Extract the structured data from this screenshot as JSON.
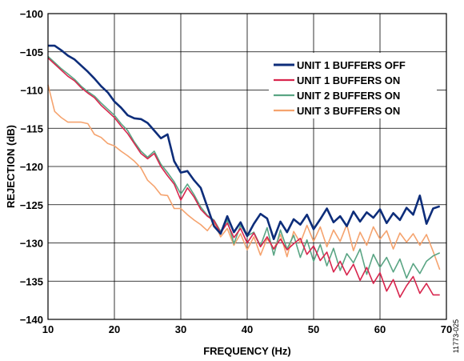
{
  "chart_data": {
    "type": "line",
    "title": "",
    "xlabel": "FREQUENCY (Hz)",
    "ylabel": "REJECTION (dB)",
    "xlim": [
      10,
      70
    ],
    "ylim": [
      -140,
      -100
    ],
    "xticks": [
      10,
      20,
      30,
      40,
      50,
      60,
      70
    ],
    "yticks": [
      -100,
      -105,
      -110,
      -115,
      -120,
      -125,
      -130,
      -135,
      -140
    ],
    "grid": true,
    "legend_position": "top-right",
    "figure_id": "11773-025",
    "series": [
      {
        "name": "UNIT 1 BUFFERS OFF",
        "color": "#0d2d7a",
        "x": [
          10,
          11,
          12,
          13,
          14,
          15,
          16,
          17,
          18,
          19,
          20,
          21,
          22,
          23,
          24,
          25,
          26,
          27,
          28,
          29,
          30,
          31,
          32,
          33,
          34,
          35,
          36,
          37,
          38,
          39,
          40,
          41,
          42,
          43,
          44,
          45,
          46,
          47,
          48,
          49,
          50,
          51,
          52,
          53,
          54,
          55,
          56,
          57,
          58,
          59,
          60,
          61,
          62,
          63,
          64,
          65,
          66,
          67,
          68,
          69
        ],
        "y": [
          -104.2,
          -104.2,
          -104.8,
          -105.5,
          -106.0,
          -106.8,
          -107.6,
          -108.5,
          -109.5,
          -110.3,
          -111.5,
          -112.3,
          -113.3,
          -113.7,
          -113.8,
          -114.3,
          -115.3,
          -116.3,
          -115.8,
          -119.3,
          -120.8,
          -120.6,
          -121.8,
          -122.8,
          -125.3,
          -127.8,
          -128.8,
          -126.5,
          -128.6,
          -127.3,
          -129.1,
          -127.5,
          -126.2,
          -126.8,
          -129.5,
          -127.2,
          -128.6,
          -126.9,
          -127.6,
          -126.3,
          -128.2,
          -126.9,
          -125.5,
          -127.3,
          -126.5,
          -127.8,
          -125.9,
          -127.2,
          -126.0,
          -126.7,
          -125.6,
          -127.4,
          -126.1,
          -127.0,
          -125.4,
          -126.3,
          -123.8,
          -127.5,
          -125.5,
          -125.2
        ]
      },
      {
        "name": "UNIT 1 BUFFERS ON",
        "color": "#d8264e",
        "x": [
          10,
          11,
          12,
          13,
          14,
          15,
          16,
          17,
          18,
          19,
          20,
          21,
          22,
          23,
          24,
          25,
          26,
          27,
          28,
          29,
          30,
          31,
          32,
          33,
          34,
          35,
          36,
          37,
          38,
          39,
          40,
          41,
          42,
          43,
          44,
          45,
          46,
          47,
          48,
          49,
          50,
          51,
          52,
          53,
          54,
          55,
          56,
          57,
          58,
          59,
          60,
          61,
          62,
          63,
          64,
          65,
          66,
          67,
          68,
          69
        ],
        "y": [
          -105.8,
          -106.6,
          -107.4,
          -108.2,
          -108.8,
          -109.7,
          -110.4,
          -111.0,
          -112.0,
          -112.8,
          -113.6,
          -114.7,
          -115.7,
          -117.0,
          -118.3,
          -119.0,
          -118.3,
          -120.0,
          -121.2,
          -122.3,
          -124.4,
          -122.8,
          -124.0,
          -125.6,
          -126.5,
          -127.1,
          -128.7,
          -127.4,
          -129.3,
          -128.1,
          -130.0,
          -128.7,
          -130.5,
          -129.2,
          -130.8,
          -129.5,
          -130.9,
          -130.1,
          -129.4,
          -131.5,
          -130.4,
          -132.3,
          -131.2,
          -133.8,
          -132.4,
          -134.2,
          -132.8,
          -134.9,
          -133.2,
          -135.3,
          -133.9,
          -136.3,
          -134.8,
          -137.1,
          -135.6,
          -134.4,
          -136.6,
          -135.3,
          -136.8,
          -136.8
        ]
      },
      {
        "name": "UNIT 2 BUFFERS ON",
        "color": "#5aa584",
        "x": [
          10,
          11,
          12,
          13,
          14,
          15,
          16,
          17,
          18,
          19,
          20,
          21,
          22,
          23,
          24,
          25,
          26,
          27,
          28,
          29,
          30,
          31,
          32,
          33,
          34,
          35,
          36,
          37,
          38,
          39,
          40,
          41,
          42,
          43,
          44,
          45,
          46,
          47,
          48,
          49,
          50,
          51,
          52,
          53,
          54,
          55,
          56,
          57,
          58,
          59,
          60,
          61,
          62,
          63,
          64,
          65,
          66,
          67,
          68,
          69
        ],
        "y": [
          -105.6,
          -106.4,
          -107.2,
          -107.9,
          -108.6,
          -109.5,
          -110.2,
          -110.8,
          -111.7,
          -112.5,
          -113.3,
          -114.4,
          -115.3,
          -116.8,
          -118.0,
          -118.8,
          -118.0,
          -119.7,
          -120.8,
          -122.0,
          -123.6,
          -122.3,
          -123.7,
          -125.3,
          -126.4,
          -127.0,
          -128.5,
          -127.0,
          -130.1,
          -127.7,
          -129.1,
          -128.6,
          -130.4,
          -128.0,
          -131.6,
          -128.3,
          -130.8,
          -129.0,
          -131.9,
          -129.6,
          -132.4,
          -130.2,
          -133.0,
          -130.7,
          -133.6,
          -131.4,
          -132.6,
          -130.8,
          -134.1,
          -131.5,
          -133.2,
          -131.9,
          -133.8,
          -132.1,
          -134.6,
          -132.7,
          -134.0,
          -132.4,
          -131.7,
          -131.3
        ]
      },
      {
        "name": "UNIT 3 BUFFERS ON",
        "color": "#f5a36e",
        "x": [
          10,
          11,
          12,
          13,
          14,
          15,
          16,
          17,
          18,
          19,
          20,
          21,
          22,
          23,
          24,
          25,
          26,
          27,
          28,
          29,
          30,
          31,
          32,
          33,
          34,
          35,
          36,
          37,
          38,
          39,
          40,
          41,
          42,
          43,
          44,
          45,
          46,
          47,
          48,
          49,
          50,
          51,
          52,
          53,
          54,
          55,
          56,
          57,
          58,
          59,
          60,
          61,
          62,
          63,
          64,
          65,
          66,
          67,
          68,
          69
        ],
        "y": [
          -109.3,
          -112.8,
          -113.6,
          -114.2,
          -114.2,
          -114.2,
          -114.4,
          -115.8,
          -116.2,
          -117.0,
          -117.3,
          -118.0,
          -118.6,
          -119.3,
          -120.2,
          -121.8,
          -122.6,
          -123.7,
          -123.8,
          -125.5,
          -125.5,
          -126.3,
          -127.0,
          -127.6,
          -128.4,
          -127.2,
          -129.2,
          -128.1,
          -130.3,
          -128.8,
          -130.9,
          -129.2,
          -131.6,
          -129.4,
          -130.8,
          -128.9,
          -131.8,
          -128.5,
          -130.0,
          -127.7,
          -129.8,
          -127.9,
          -130.5,
          -128.3,
          -129.8,
          -127.6,
          -131.0,
          -128.6,
          -130.3,
          -127.9,
          -129.5,
          -128.4,
          -130.8,
          -128.7,
          -129.9,
          -128.8,
          -130.3,
          -128.9,
          -131.1,
          -133.5
        ]
      }
    ]
  }
}
